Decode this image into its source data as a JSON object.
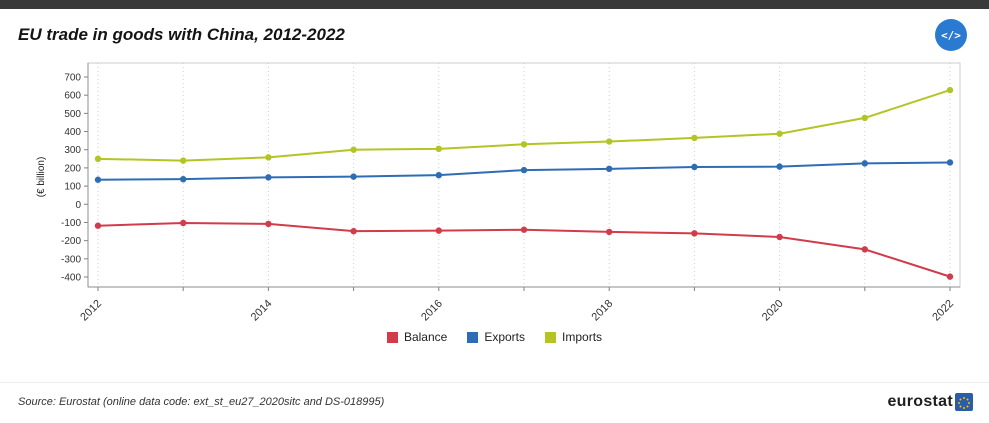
{
  "header": {
    "title": "EU trade in goods with China, 2012-2022",
    "code_button_label": "</>"
  },
  "chart_data": {
    "type": "line",
    "x": [
      2012,
      2013,
      2014,
      2015,
      2016,
      2017,
      2018,
      2019,
      2020,
      2021,
      2022
    ],
    "series": [
      {
        "name": "Balance",
        "color": "#d13c4b",
        "values": [
          -118,
          -103,
          -108,
          -148,
          -145,
          -140,
          -152,
          -160,
          -180,
          -248,
          -398
        ]
      },
      {
        "name": "Exports",
        "color": "#2e6db4",
        "values": [
          135,
          138,
          148,
          152,
          160,
          188,
          195,
          205,
          207,
          225,
          230
        ]
      },
      {
        "name": "Imports",
        "color": "#b4c424",
        "values": [
          250,
          240,
          258,
          300,
          305,
          330,
          345,
          365,
          388,
          475,
          628
        ]
      }
    ],
    "title": "EU trade in goods with China, 2012-2022",
    "xlabel": "",
    "ylabel": "(€ billion)",
    "ylim": [
      -400,
      700
    ],
    "ytick_step": 100,
    "x_labels_every": 2,
    "grid": "vertical-dotted",
    "legend_position": "bottom"
  },
  "footer": {
    "source": "Source: Eurostat (online data code: ext_st_eu27_2020sitc and DS-018995)",
    "brand": "eurostat"
  }
}
